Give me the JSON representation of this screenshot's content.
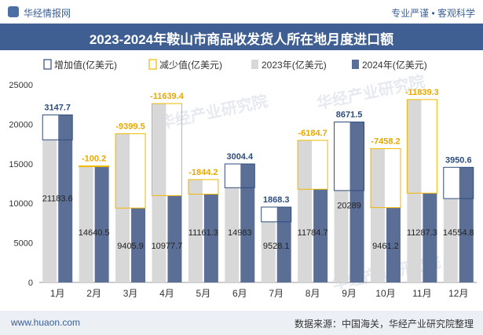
{
  "header": {
    "brand": "华经情报网",
    "slogan": "专业严谨 • 客观科学"
  },
  "title": "2023-2024年鞍山市商品收发货人所在地月度进口额",
  "footer": {
    "site": "www.huaon.com",
    "source": "数据来源：中国海关，华经产业研究院整理"
  },
  "watermark": "华经产业研究院",
  "colors": {
    "bar2023": "#d8d8d8",
    "bar2024": "#5b6e96",
    "increase": "#2e4d7b",
    "decrease": "#f0b800",
    "titlebar": "#3f5f92"
  },
  "chart_data": {
    "type": "bar",
    "categories": [
      "1月",
      "2月",
      "3月",
      "4月",
      "5月",
      "6月",
      "7月",
      "8月",
      "9月",
      "10月",
      "11月",
      "12月"
    ],
    "series": [
      {
        "name": "2023年(亿美元)",
        "values": [
          18036,
          14740.7,
          18805.4,
          22617.1,
          13005.3,
          11978.6,
          7659.8,
          17969.4,
          11617.6,
          16919.4,
          23126.6,
          10604.2
        ]
      },
      {
        "name": "2024年(亿美元)",
        "values": [
          21183.6,
          14640.5,
          9405.9,
          10977.7,
          11161.3,
          14983,
          9528.1,
          11784.7,
          20289,
          9461.2,
          11287.3,
          14554.8
        ]
      }
    ],
    "changes": [
      3147.7,
      -100.2,
      -9399.5,
      -11639.4,
      -1844.2,
      3004.4,
      1868.3,
      -6184.7,
      8671.5,
      -7458.2,
      -11839.3,
      3950.6
    ],
    "change_labels": [
      "3147.7",
      "-100.2",
      "-9399.5",
      "-11639.4",
      "-1844.2",
      "3004.4",
      "1868.3",
      "-6184.7",
      "8671.5",
      "-7458.2",
      "-11839.3",
      "3950.6"
    ],
    "value_labels": [
      "21183.6",
      "14640.5",
      "9405.9",
      "10977.7",
      "11161.3",
      "14983",
      "9528.1",
      "11784.7",
      "20289",
      "9461.2",
      "11287.3",
      "14554.8"
    ],
    "legend": [
      "增加值(亿美元)",
      "减少值(亿美元)",
      "2023年(亿美元)",
      "2024年(亿美元)"
    ],
    "legend_position": "top",
    "ylim": [
      0,
      25000
    ],
    "yticks": [
      "0",
      "5000",
      "10000",
      "15000",
      "20000",
      "25000"
    ],
    "grid": false
  }
}
